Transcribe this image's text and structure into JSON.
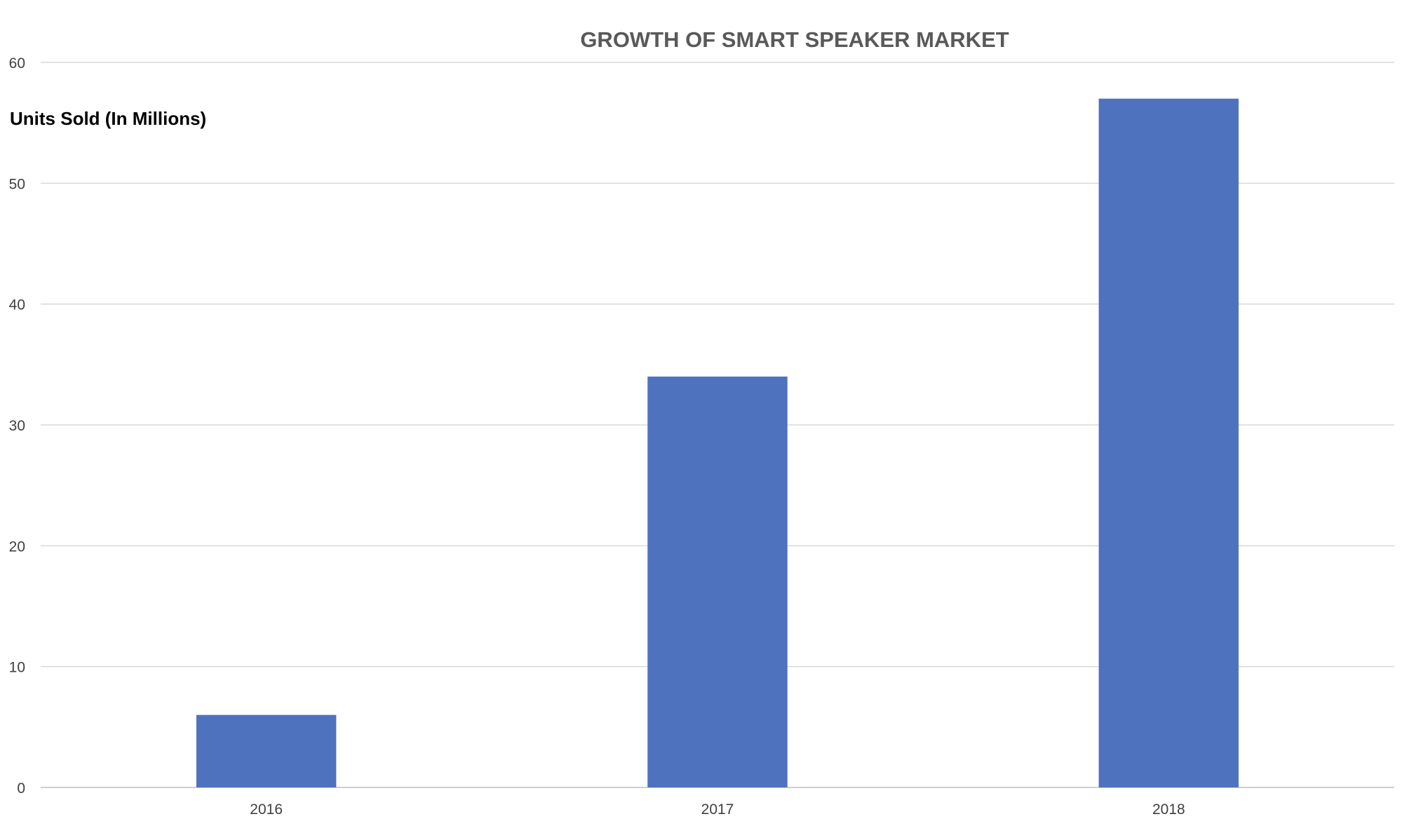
{
  "chart_data": {
    "type": "bar",
    "title": "GROWTH OF SMART SPEAKER MARKET",
    "ylabel": "Units Sold (In Millions)",
    "xlabel": "",
    "categories": [
      "2016",
      "2017",
      "2018"
    ],
    "values": [
      6,
      34,
      57
    ],
    "ylim": [
      0,
      60
    ],
    "yticks": [
      0,
      10,
      20,
      30,
      40,
      50,
      60
    ],
    "grid": true,
    "legend": "none",
    "colors": {
      "bar": "#4e72be",
      "grid": "#d9d9d9",
      "title": "#595959",
      "tick_text": "#404040",
      "ylabel": "#000000"
    }
  }
}
